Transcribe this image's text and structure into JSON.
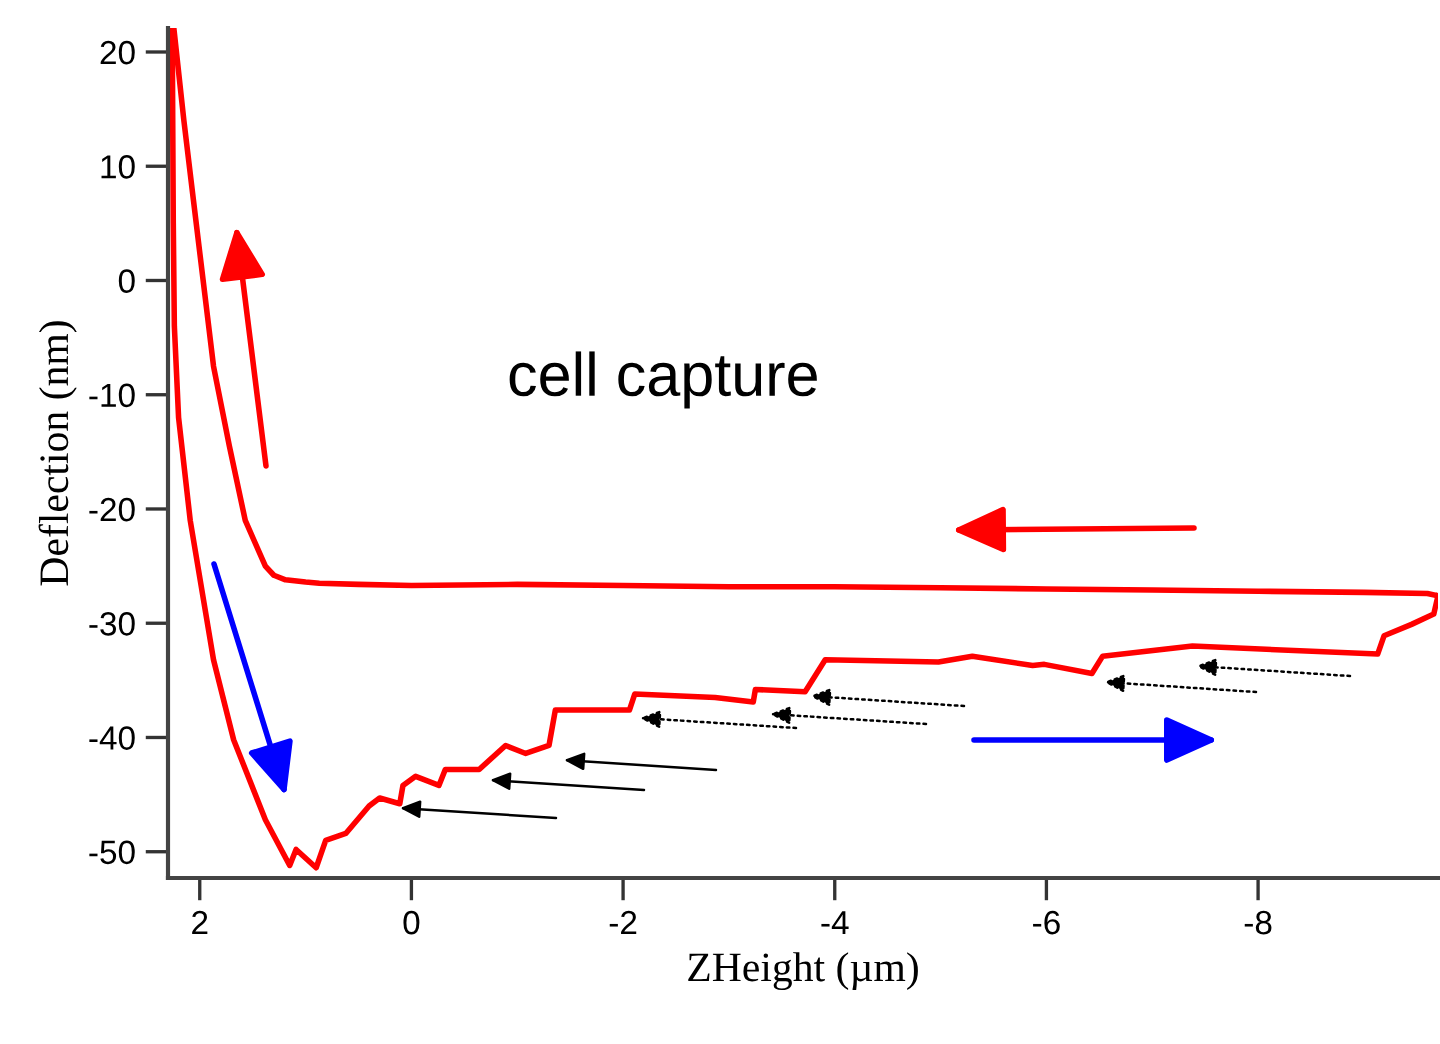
{
  "chart_data": {
    "type": "line",
    "xlabel": "ZHeight (µm)",
    "ylabel": "Deflection (nm)",
    "xlim": [
      2.3,
      -9.7
    ],
    "ylim": [
      -52.3,
      22.1
    ],
    "xticks": [
      2,
      0,
      -2,
      -4,
      -6,
      -8
    ],
    "yticks": [
      -50,
      -40,
      -30,
      -20,
      -10,
      0,
      10,
      20
    ],
    "grid": false,
    "legend": false,
    "marker": "none",
    "line_style": "solid",
    "annotations": [
      "cell capture"
    ],
    "series": [
      {
        "color": "#ff0000",
        "x": [
          -9.7,
          -9.6,
          -9.0,
          -8.0,
          -7.0,
          -6.0,
          -5.0,
          -4.0,
          -3.0,
          -2.0,
          -1.0,
          0.0,
          0.5,
          0.87,
          1.0,
          1.19,
          1.3,
          1.38,
          1.57,
          1.72,
          1.87,
          2.06,
          2.15,
          2.245
        ],
        "values": [
          -27.6,
          -27.4,
          -27.3,
          -27.2,
          -27.1,
          -27.0,
          -26.9,
          -26.8,
          -26.8,
          -26.7,
          -26.6,
          -26.7,
          -26.6,
          -26.5,
          -26.4,
          -26.2,
          -25.8,
          -25.0,
          -21.0,
          -14.5,
          -7.5,
          7.05,
          14.0,
          22.1
        ]
      },
      {
        "color": "#ff0000",
        "x": [
          2.26,
          2.25,
          2.24,
          2.2,
          2.09,
          1.87,
          1.68,
          1.38,
          1.15,
          1.09,
          0.9,
          0.81,
          0.62,
          0.4,
          0.3,
          0.11,
          0.08,
          -0.04,
          -0.26,
          -0.32,
          -0.64,
          -0.89,
          -1.08,
          -1.3,
          -1.36,
          -2.06,
          -2.11,
          -2.87,
          -3.23,
          -3.25,
          -3.72,
          -3.91,
          -4.98,
          -5.3,
          -5.87,
          -5.98,
          -6.43,
          -6.53,
          -7.38,
          -9.13,
          -9.19,
          -9.45,
          -9.66,
          -9.7
        ],
        "values": [
          22.1,
          5.0,
          -4.0,
          -12.0,
          -21.0,
          -33.2,
          -40.2,
          -47.2,
          -51.2,
          -49.8,
          -51.4,
          -49.0,
          -48.4,
          -46.0,
          -45.3,
          -45.8,
          -44.2,
          -43.4,
          -44.2,
          -42.8,
          -42.8,
          -40.7,
          -41.4,
          -40.7,
          -37.6,
          -37.6,
          -36.2,
          -36.5,
          -36.9,
          -35.8,
          -36.0,
          -33.2,
          -33.4,
          -32.9,
          -33.7,
          -33.6,
          -34.4,
          -32.9,
          -32.0,
          -32.7,
          -31.1,
          -30.1,
          -29.2,
          -27.6
        ]
      }
    ]
  }
}
